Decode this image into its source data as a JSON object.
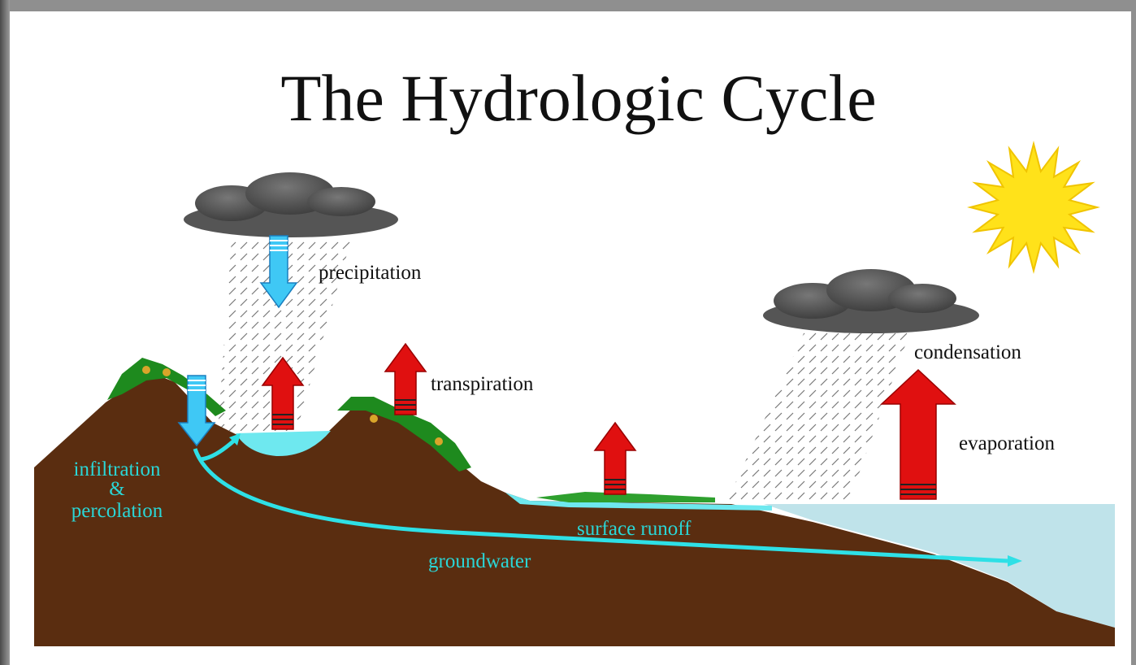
{
  "title": "The Hydrologic Cycle",
  "labels": {
    "precipitation": "precipitation",
    "transpiration": "transpiration",
    "condensation": "condensation",
    "evaporation": "evaporation",
    "infiltration": [
      "infiltration",
      "&",
      "percolation"
    ],
    "surface_runoff": "surface runoff",
    "groundwater": "groundwater"
  }
}
